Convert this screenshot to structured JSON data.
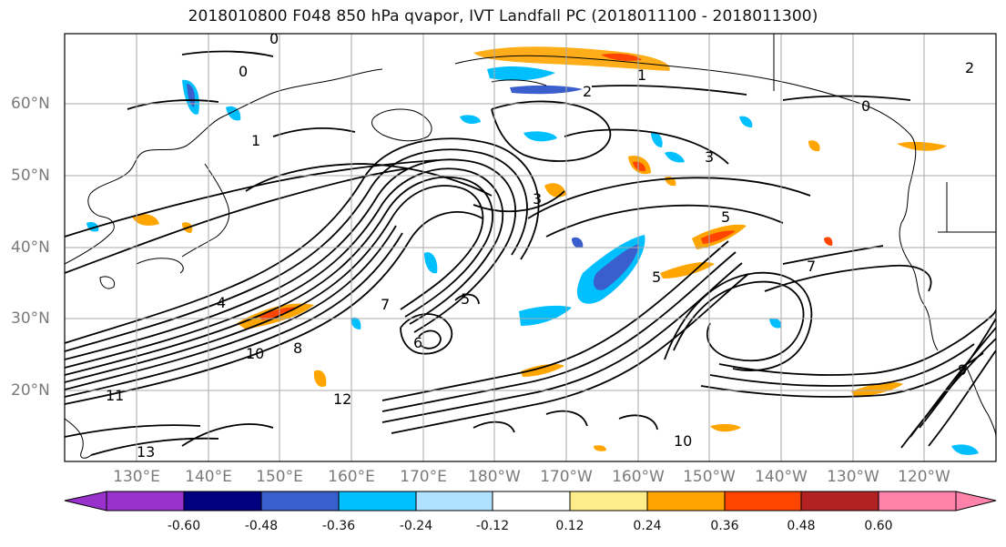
{
  "title": "2018010800 F048 850 hPa qvapor, IVT Landfall PC (2018011100 - 2018011300)",
  "latitudes": [
    "60°N",
    "50°N",
    "40°N",
    "30°N",
    "20°N"
  ],
  "longitudes": [
    "130°E",
    "140°E",
    "150°E",
    "160°E",
    "170°E",
    "180°W",
    "170°W",
    "160°W",
    "150°W",
    "140°W",
    "130°W",
    "120°W"
  ],
  "colorbar": {
    "ticks": [
      "-0.60",
      "-0.48",
      "-0.36",
      "-0.24",
      "-0.12",
      "0.12",
      "0.24",
      "0.36",
      "0.48",
      "0.60"
    ],
    "colors": [
      "#9932cc",
      "#000080",
      "#3a5fcd",
      "#00bfff",
      "#b0e2ff",
      "#ffffff",
      "#ffec8b",
      "#ffa500",
      "#ff4500",
      "#b22222",
      "#ff82ab"
    ]
  },
  "contour_labels": [
    "0",
    "0",
    "0",
    "1",
    "1",
    "2",
    "2",
    "3",
    "3",
    "4",
    "5",
    "5",
    "5",
    "6",
    "7",
    "7",
    "8",
    "9",
    "10",
    "10",
    "11",
    "12",
    "13"
  ]
}
